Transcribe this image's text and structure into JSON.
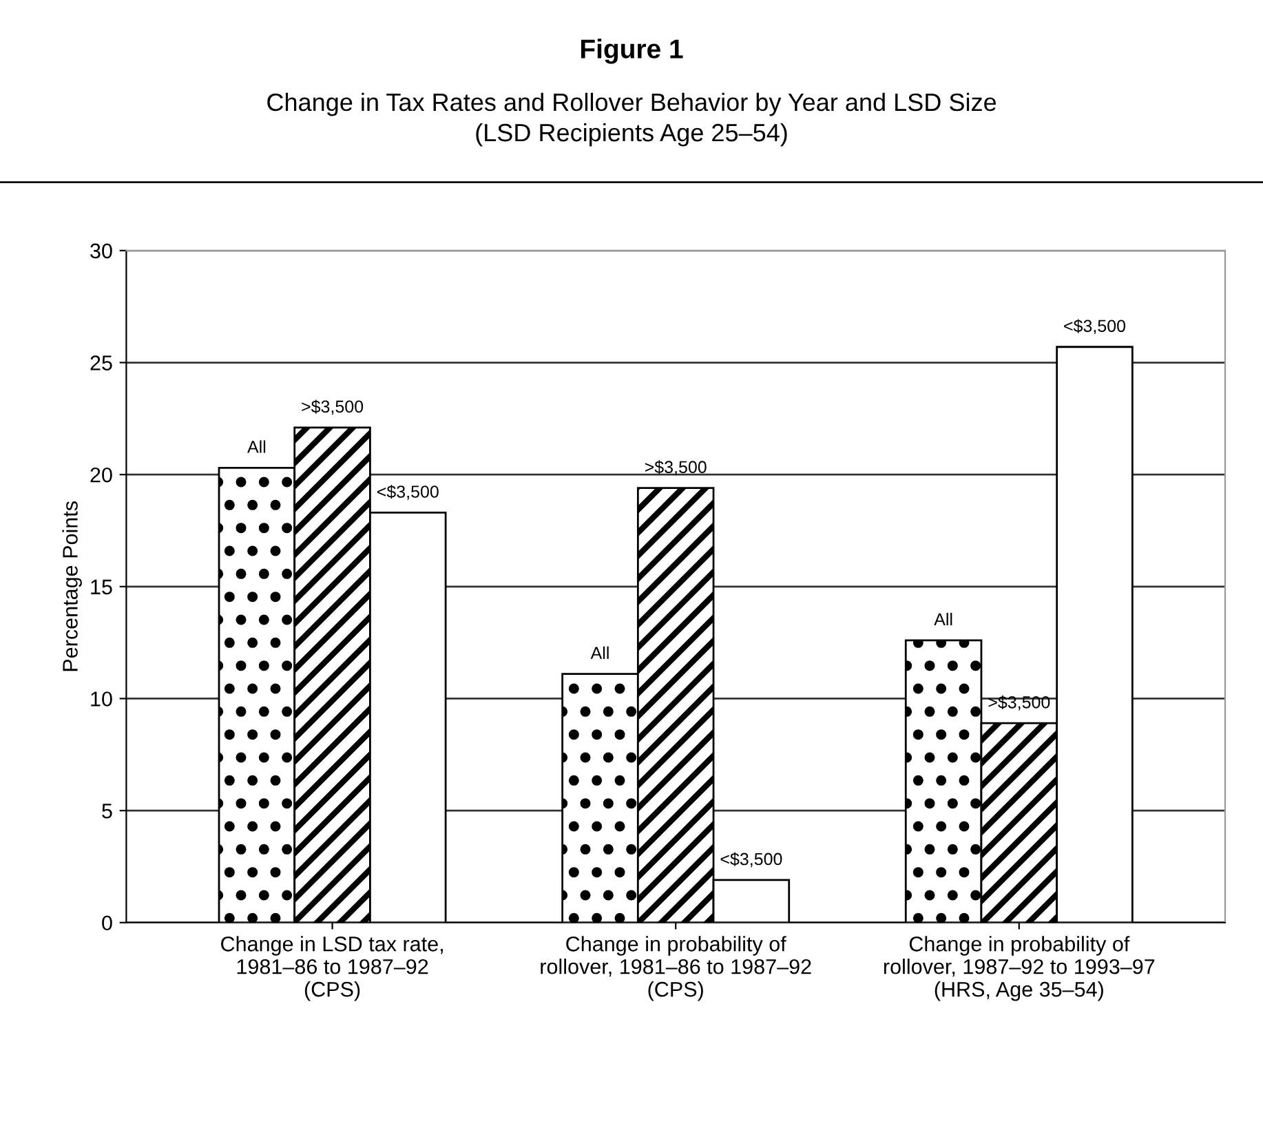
{
  "chart_data": {
    "type": "bar",
    "title": "Figure 1",
    "subtitle": "Change in Tax Rates and Rollover Behavior by Year and LSD Size\n(LSD Recipients Age 25–54)",
    "ylabel": "Percentage Points",
    "categories": [
      "Change in LSD tax rate,\n1981–86 to 1987–92\n(CPS)",
      "Change in probability of\nrollover, 1981–86 to 1987–92\n(CPS)",
      "Change in probability of\nrollover, 1987–92 to 1993–97\n(HRS, Age 35–54)"
    ],
    "series": [
      {
        "name": "All",
        "color": "#000000",
        "values": [
          20.3,
          11.1,
          12.6
        ]
      },
      {
        "name": ">$3,500",
        "color": "#000000",
        "values": [
          22.1,
          19.4,
          8.9
        ]
      },
      {
        "name": "<$3,500",
        "color": "#ffffff",
        "values": [
          18.3,
          1.9,
          25.7
        ]
      }
    ],
    "ylim": [
      0,
      30
    ],
    "yticks": [
      0,
      5,
      10,
      15,
      20,
      25,
      30
    ],
    "grid": "y",
    "legend": false
  }
}
